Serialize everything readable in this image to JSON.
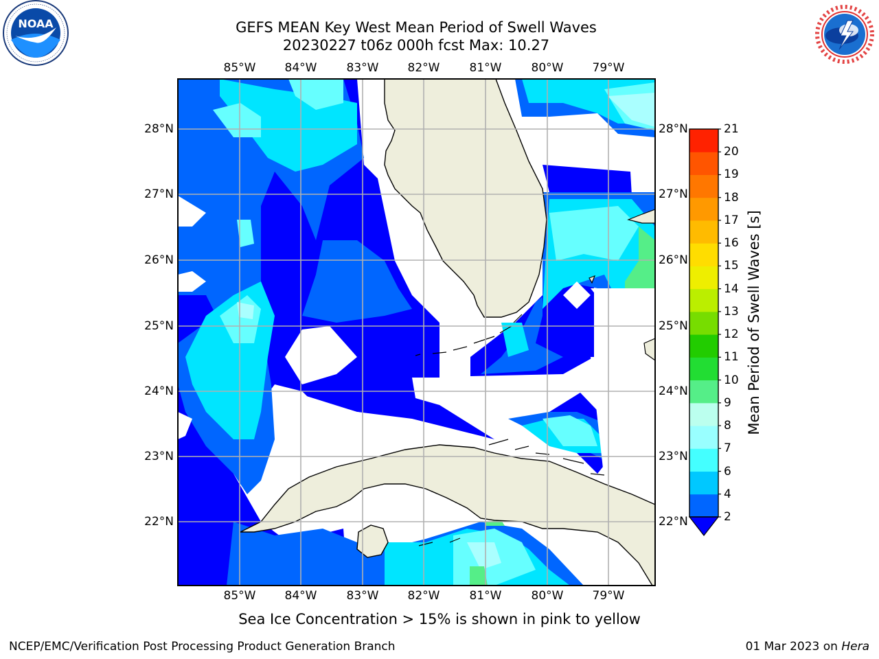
{
  "title": {
    "line1": "GEFS MEAN Key West Mean Period of Swell Waves",
    "line2": "20230227 t06z 000h fcst   Max: 10.27"
  },
  "logos": {
    "left": {
      "icon": "noaa-logo",
      "text": "NOAA",
      "ring_text": "NATIONAL OCEANIC AND ATMOSPHERIC ADMINISTRATION · U.S. DEPARTMENT OF COMMERCE"
    },
    "right": {
      "icon": "nws-logo",
      "ring_text": "NATIONAL WEATHER SERVICE"
    }
  },
  "map": {
    "lon_labels": [
      "85°W",
      "84°W",
      "83°W",
      "82°W",
      "81°W",
      "80°W",
      "79°W"
    ],
    "lat_labels": [
      "28°N",
      "27°N",
      "26°N",
      "25°N",
      "24°N",
      "23°N",
      "22°N"
    ],
    "extent": {
      "lon": [
        -86.0,
        -78.25
      ],
      "lat": [
        21.0,
        28.75
      ]
    },
    "land_color": "#eeeedc",
    "grid_color": "#b0b0b0"
  },
  "colorbar": {
    "label": "Mean Period of Swell Waves [s]",
    "ticks": [
      "21",
      "20",
      "19",
      "18",
      "17",
      "16",
      "15",
      "14",
      "13",
      "12",
      "11",
      "10",
      "9",
      "8",
      "7",
      "6",
      "4",
      "2"
    ],
    "colors_low_to_high": [
      "#0066ff",
      "#00c8ff",
      "#44ffff",
      "#99ffff",
      "#bbffee",
      "#55ee88",
      "#22dd33",
      "#22cc00",
      "#77dd00",
      "#bbee00",
      "#eeee00",
      "#ffdd00",
      "#ffbb00",
      "#ff9900",
      "#ff7700",
      "#ff5500",
      "#ff2200"
    ],
    "extend_color": "#0000ff"
  },
  "note": "Sea Ice Concentration > 15% is shown in pink to yellow",
  "footer": {
    "left": "NCEP/EMC/Verification Post Processing Product Generation Branch",
    "right_date": "01 Mar 2023 on ",
    "right_host": "Hera"
  }
}
